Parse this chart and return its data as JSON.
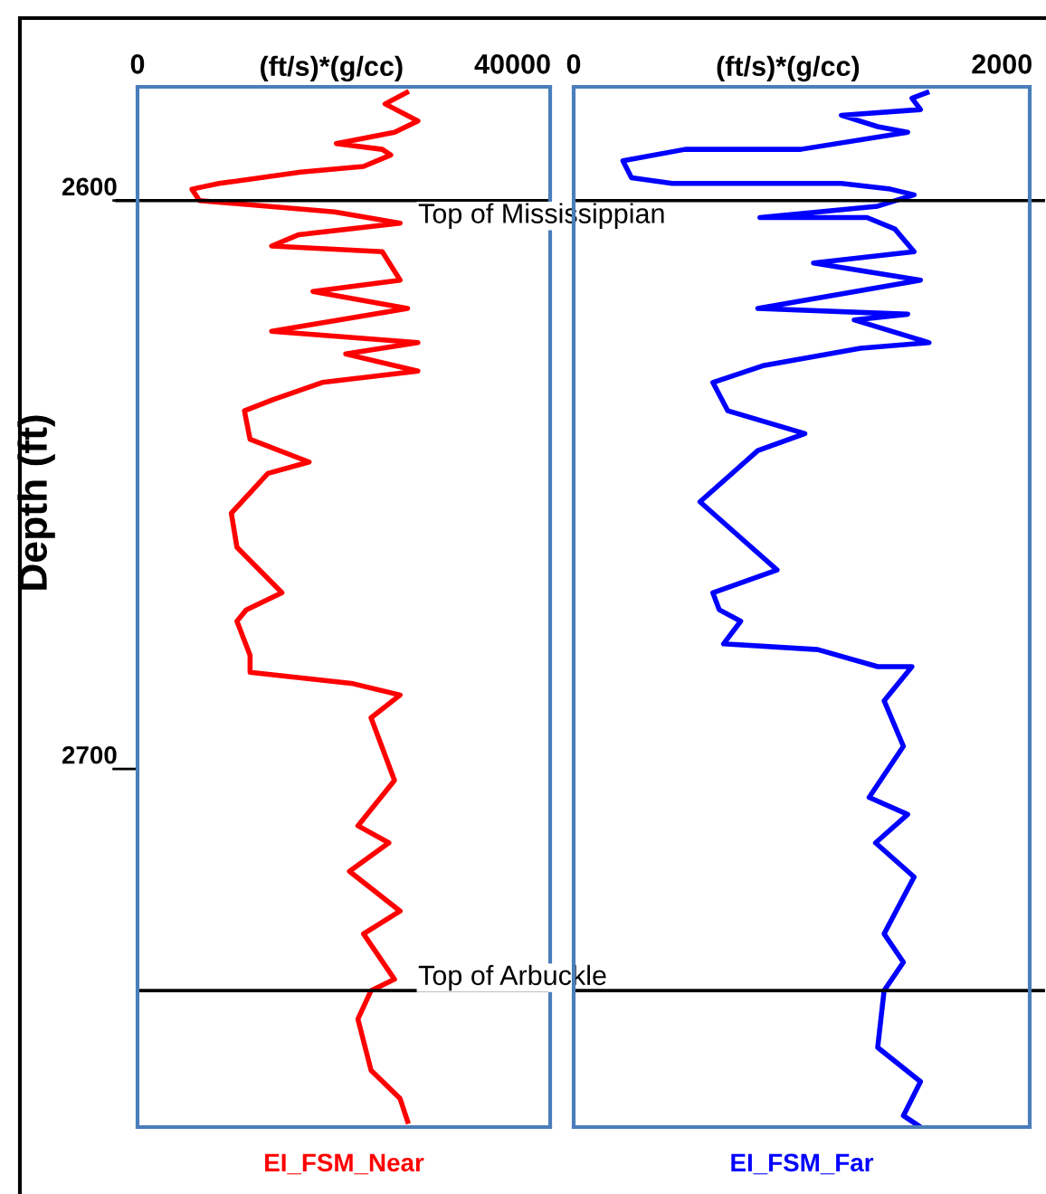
{
  "chart_data": [
    {
      "type": "line",
      "xlabel": "(ft/s)*(g/cc)",
      "ylabel": "Depth (ft)",
      "xlim": [
        0,
        44000
      ],
      "xticks": [
        0,
        40000
      ],
      "ylim": [
        2763,
        2580
      ],
      "yticks": [
        2600,
        2700
      ],
      "grid": false,
      "legend": false,
      "marker": "none",
      "line_style": "solid",
      "series": [
        {
          "name": "EI_FSM_Near",
          "color": "#ff0000",
          "x": [
            28700,
            26400,
            29900,
            27400,
            21200,
            26100,
            27000,
            24100,
            17400,
            8700,
            5800,
            6600,
            21000,
            28000,
            17200,
            14300,
            26100,
            28000,
            18700,
            28800,
            14300,
            29900,
            22200,
            29900,
            19700,
            14500,
            11400,
            12000,
            18300,
            13900,
            10000,
            10600,
            15400,
            11600,
            10600,
            12000,
            12000,
            23000,
            28000,
            24900,
            27400,
            23500,
            26800,
            22600,
            28000,
            24100,
            27400,
            24900,
            23500,
            24900,
            28000,
            28800
          ],
          "values": [
            2581,
            2583,
            2586,
            2588,
            2590,
            2591,
            2592,
            2594,
            2595,
            2597,
            2598,
            2600,
            2602,
            2604,
            2606,
            2608,
            2609,
            2614,
            2616,
            2619,
            2623,
            2625,
            2627,
            2630,
            2632,
            2635,
            2637,
            2642,
            2646,
            2648,
            2655,
            2661,
            2669,
            2672,
            2674,
            2680,
            2683,
            2685,
            2687,
            2691,
            2702,
            2710,
            2713,
            2718,
            2725,
            2729,
            2737,
            2739,
            2744,
            2753,
            2758,
            2762
          ]
        }
      ],
      "ref_lines": [
        {
          "axis": "y",
          "value": 2600,
          "label": "Top of Mississippian",
          "color": "#000000"
        },
        {
          "axis": "y",
          "value": 2739,
          "label": "Top of Arbuckle",
          "color": "#000000"
        }
      ]
    },
    {
      "type": "line",
      "xlabel": "(ft/s)*(g/cc)",
      "xlim": [
        0,
        2130
      ],
      "xticks": [
        0,
        2000
      ],
      "ylim": [
        2763,
        2580
      ],
      "tick_labels": "x",
      "grid": false,
      "legend": false,
      "marker": "none",
      "line_style": "solid",
      "series": [
        {
          "name": "EI_FSM_Far",
          "color": "#0000ff",
          "x": [
            1650,
            1580,
            1620,
            1250,
            1420,
            1560,
            1060,
            520,
            230,
            270,
            460,
            1250,
            1480,
            1590,
            1420,
            870,
            1370,
            1500,
            1590,
            1120,
            1620,
            860,
            1560,
            1310,
            1660,
            1340,
            890,
            650,
            720,
            1080,
            860,
            590,
            800,
            950,
            650,
            680,
            780,
            700,
            1140,
            1420,
            1580,
            1450,
            1540,
            1380,
            1560,
            1410,
            1590,
            1450,
            1540,
            1450,
            1420,
            1620,
            1540,
            1620
          ],
          "values": [
            2581,
            2582,
            2584,
            2585,
            2587,
            2588,
            2591,
            2591,
            2593,
            2596,
            2597,
            2597,
            2598,
            2599,
            2601,
            2603,
            2603,
            2605,
            2609,
            2611,
            2614,
            2619,
            2620,
            2621,
            2625,
            2626,
            2629,
            2632,
            2637,
            2641,
            2644,
            2653,
            2660,
            2665,
            2669,
            2672,
            2674,
            2678,
            2679,
            2682,
            2682,
            2688,
            2696,
            2705,
            2708,
            2713,
            2719,
            2729,
            2734,
            2739,
            2749,
            2755,
            2761,
            2763
          ]
        }
      ],
      "ref_lines": [
        {
          "axis": "y",
          "value": 2600,
          "color": "#000000"
        },
        {
          "axis": "y",
          "value": 2739,
          "color": "#000000"
        }
      ]
    }
  ]
}
